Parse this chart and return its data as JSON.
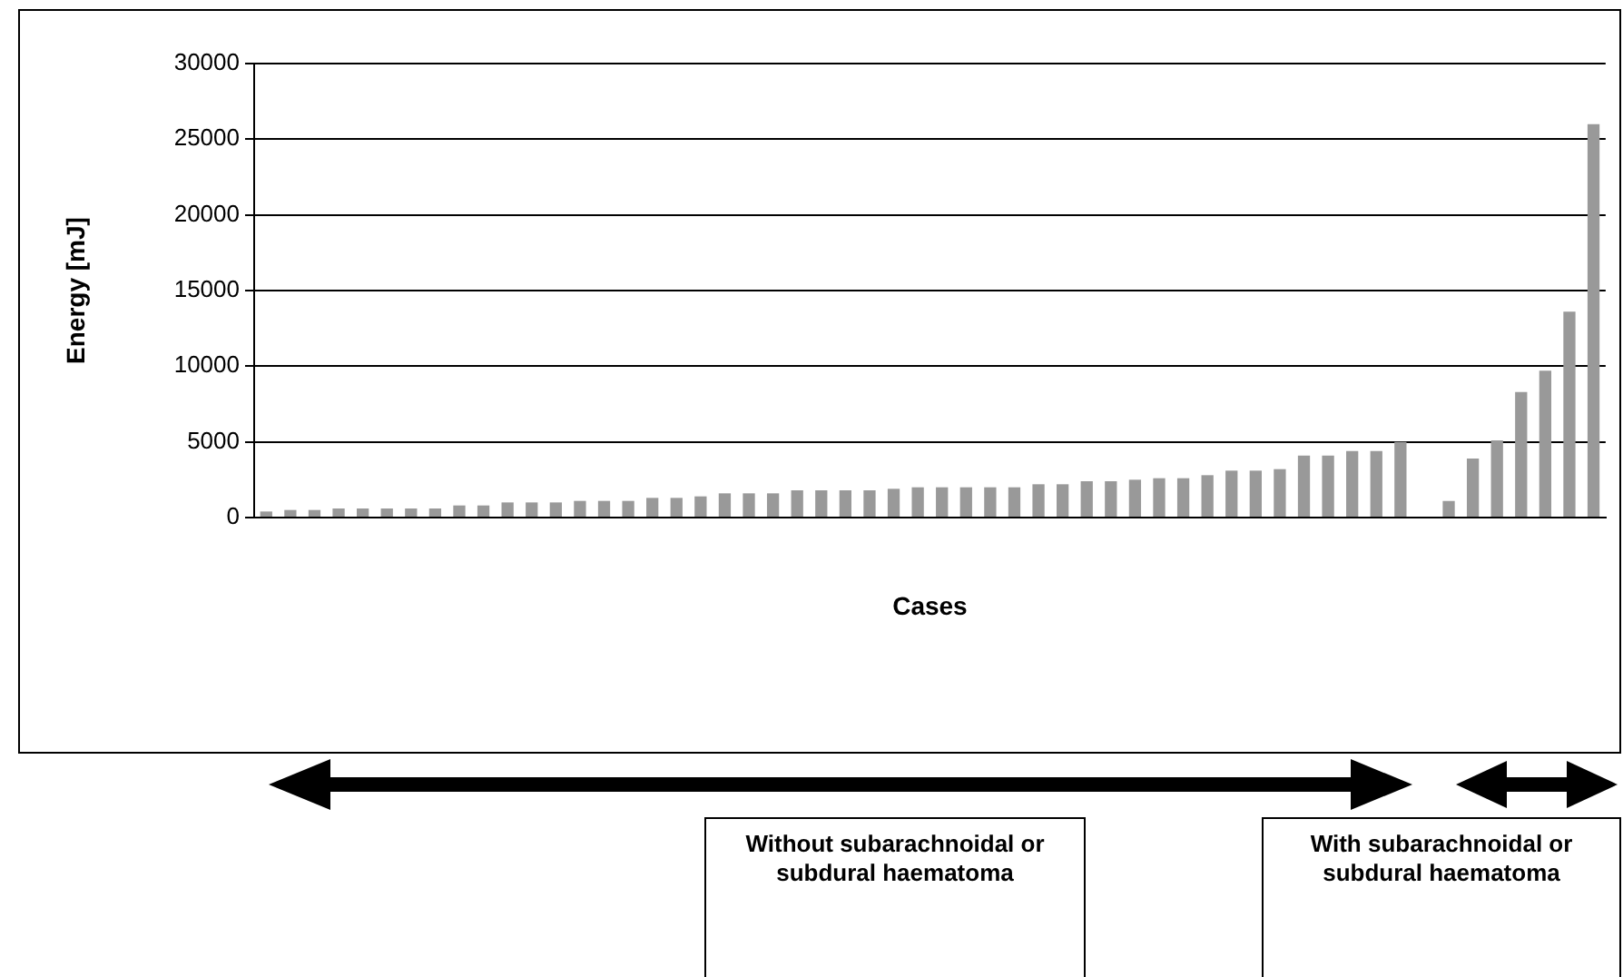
{
  "chart_data": {
    "type": "bar",
    "xlabel": "Cases",
    "ylabel": "Energy [mJ]",
    "categories": [
      null,
      null,
      null,
      null,
      null,
      null,
      null,
      null,
      null,
      null,
      null,
      null,
      null,
      null,
      null,
      null,
      null,
      null,
      null,
      null,
      null,
      null,
      null,
      null,
      null,
      null,
      null,
      null,
      null,
      null,
      null,
      null,
      null,
      null,
      null,
      null,
      null,
      null,
      null,
      null,
      null,
      null,
      null,
      null,
      null,
      null,
      null,
      null,
      null,
      null,
      null,
      null,
      null,
      null,
      null,
      null
    ],
    "values": [
      400,
      500,
      500,
      600,
      600,
      600,
      600,
      600,
      800,
      800,
      1000,
      1000,
      1000,
      1100,
      1100,
      1100,
      1300,
      1300,
      1400,
      1600,
      1600,
      1600,
      1800,
      1800,
      1800,
      1800,
      1900,
      2000,
      2000,
      2000,
      2000,
      2000,
      2200,
      2200,
      2400,
      2400,
      2500,
      2600,
      2600,
      2800,
      3100,
      3100,
      3200,
      4100,
      4100,
      4400,
      4400,
      5000,
      null,
      1100,
      3900,
      5100,
      8300,
      9700,
      13600,
      26000
    ],
    "color": "#999999",
    "ylim": [
      0,
      30000
    ],
    "yticks": [
      0,
      5000,
      10000,
      15000,
      20000,
      25000,
      30000
    ],
    "grid": "y",
    "legend": false,
    "annotations": [
      "Without subarachnoidal or subdural haematoma",
      "With subarachnoidal or subdural haematoma"
    ]
  }
}
